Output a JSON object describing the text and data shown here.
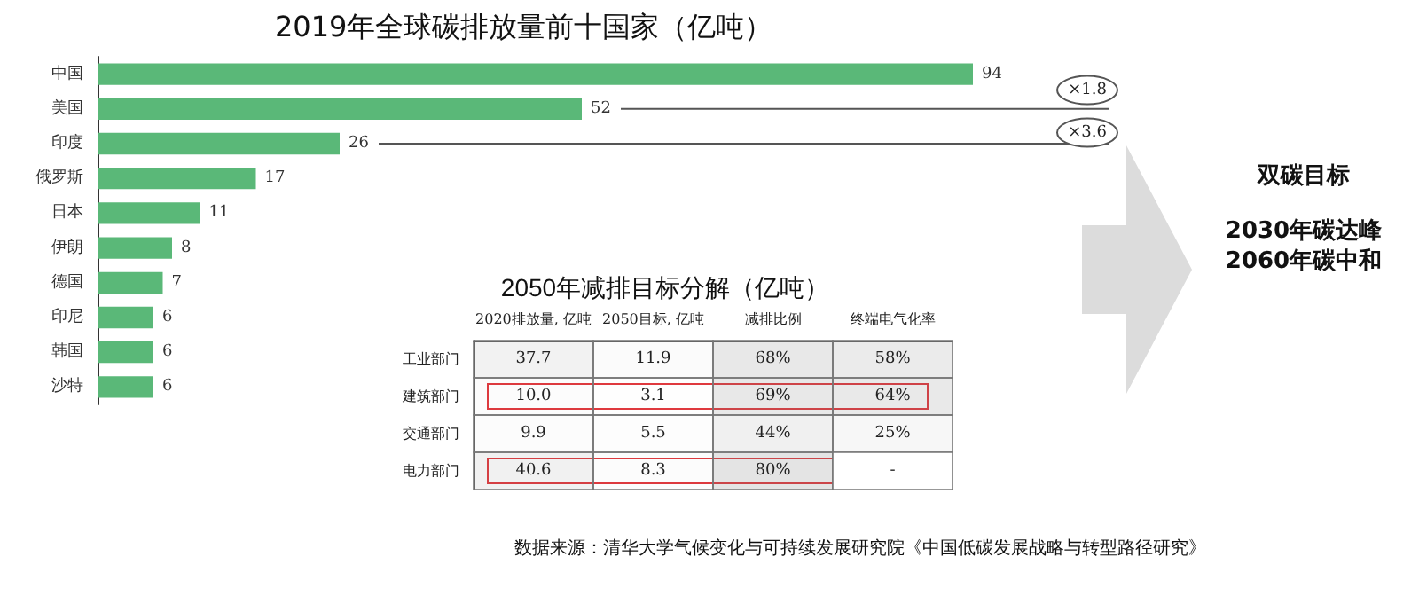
{
  "chart_data": [
    {
      "type": "bar",
      "orientation": "horizontal",
      "title": "2019年全球碳排放量前十国家（亿吨）",
      "categories": [
        "中国",
        "美国",
        "印度",
        "俄罗斯",
        "日本",
        "伊朗",
        "德国",
        "印尼",
        "韩国",
        "沙特"
      ],
      "values": [
        94,
        52,
        26,
        17,
        11,
        8,
        7,
        6,
        6,
        6
      ],
      "color": "#5ab878",
      "data_labels": true,
      "annotations": [
        "×1.8",
        "×3.6"
      ]
    },
    {
      "type": "heatmap",
      "title": "2050年减排目标分解（亿吨）",
      "categories": [
        "2020排放量, 亿吨",
        "2050目标, 亿吨",
        "减排比例",
        "终端电气化率"
      ],
      "y_categories": [
        "工业部门",
        "建筑部门",
        "交通部门",
        "电力部门"
      ],
      "cells": [
        [
          37.7,
          11.9,
          68,
          58
        ],
        [
          10.0,
          3.1,
          69,
          64
        ],
        [
          9.9,
          5.5,
          44,
          25
        ],
        [
          40.6,
          8.3,
          80,
          null
        ]
      ],
      "cell_labels": [
        [
          "37.7",
          "11.9",
          "68%",
          "58%"
        ],
        [
          "10.0",
          "3.1",
          "69%",
          "64%"
        ],
        [
          "9.9",
          "5.5",
          "44%",
          "25%"
        ],
        [
          "40.6",
          "8.3",
          "80%",
          "-"
        ]
      ]
    },
    {
      "type": "other",
      "title": "双碳目标",
      "annotations": [
        "2030年碳达峰",
        "2060年碳中和",
        "数据来源：清华大学气候变化与可持续发展研究院《中国低碳发展战略与转型路径研究》"
      ]
    }
  ]
}
